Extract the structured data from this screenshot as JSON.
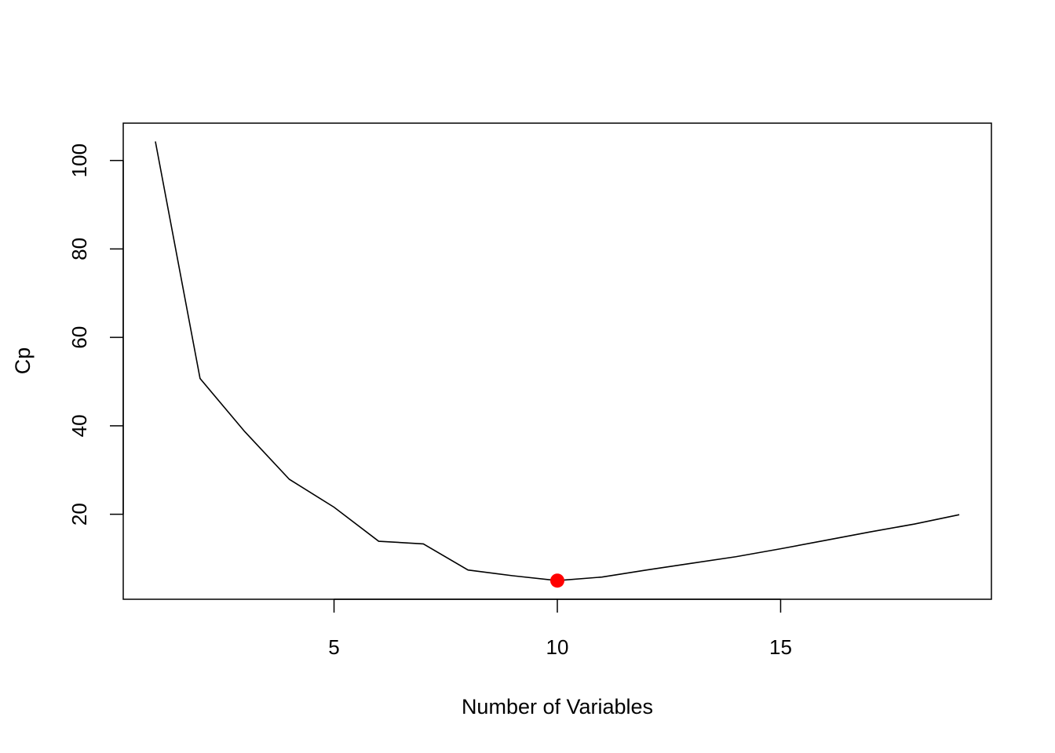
{
  "chart_data": {
    "type": "line",
    "title": "",
    "xlabel": "Number of Variables",
    "ylabel": "Cp",
    "xlim": [
      0.28,
      19.72
    ],
    "ylim": [
      0.78,
      108.45
    ],
    "x_ticks": [
      5,
      10,
      15
    ],
    "y_ticks": [
      20,
      40,
      60,
      80,
      100
    ],
    "grid": false,
    "legend": "none",
    "series": [
      {
        "x": [
          1,
          2,
          3,
          4,
          5,
          6,
          7,
          8,
          9,
          10,
          11,
          12,
          13,
          14,
          15,
          16,
          17,
          18,
          19
        ],
        "values": [
          104.3,
          50.7,
          38.7,
          27.9,
          21.6,
          13.9,
          13.3,
          7.4,
          6.1,
          5.0,
          5.8,
          7.4,
          8.9,
          10.4,
          12.2,
          14.1,
          16.0,
          17.8,
          19.9
        ],
        "color": "#000000"
      }
    ],
    "highlight": {
      "x": 10,
      "y": 5.0,
      "color": "#ff0000"
    }
  }
}
